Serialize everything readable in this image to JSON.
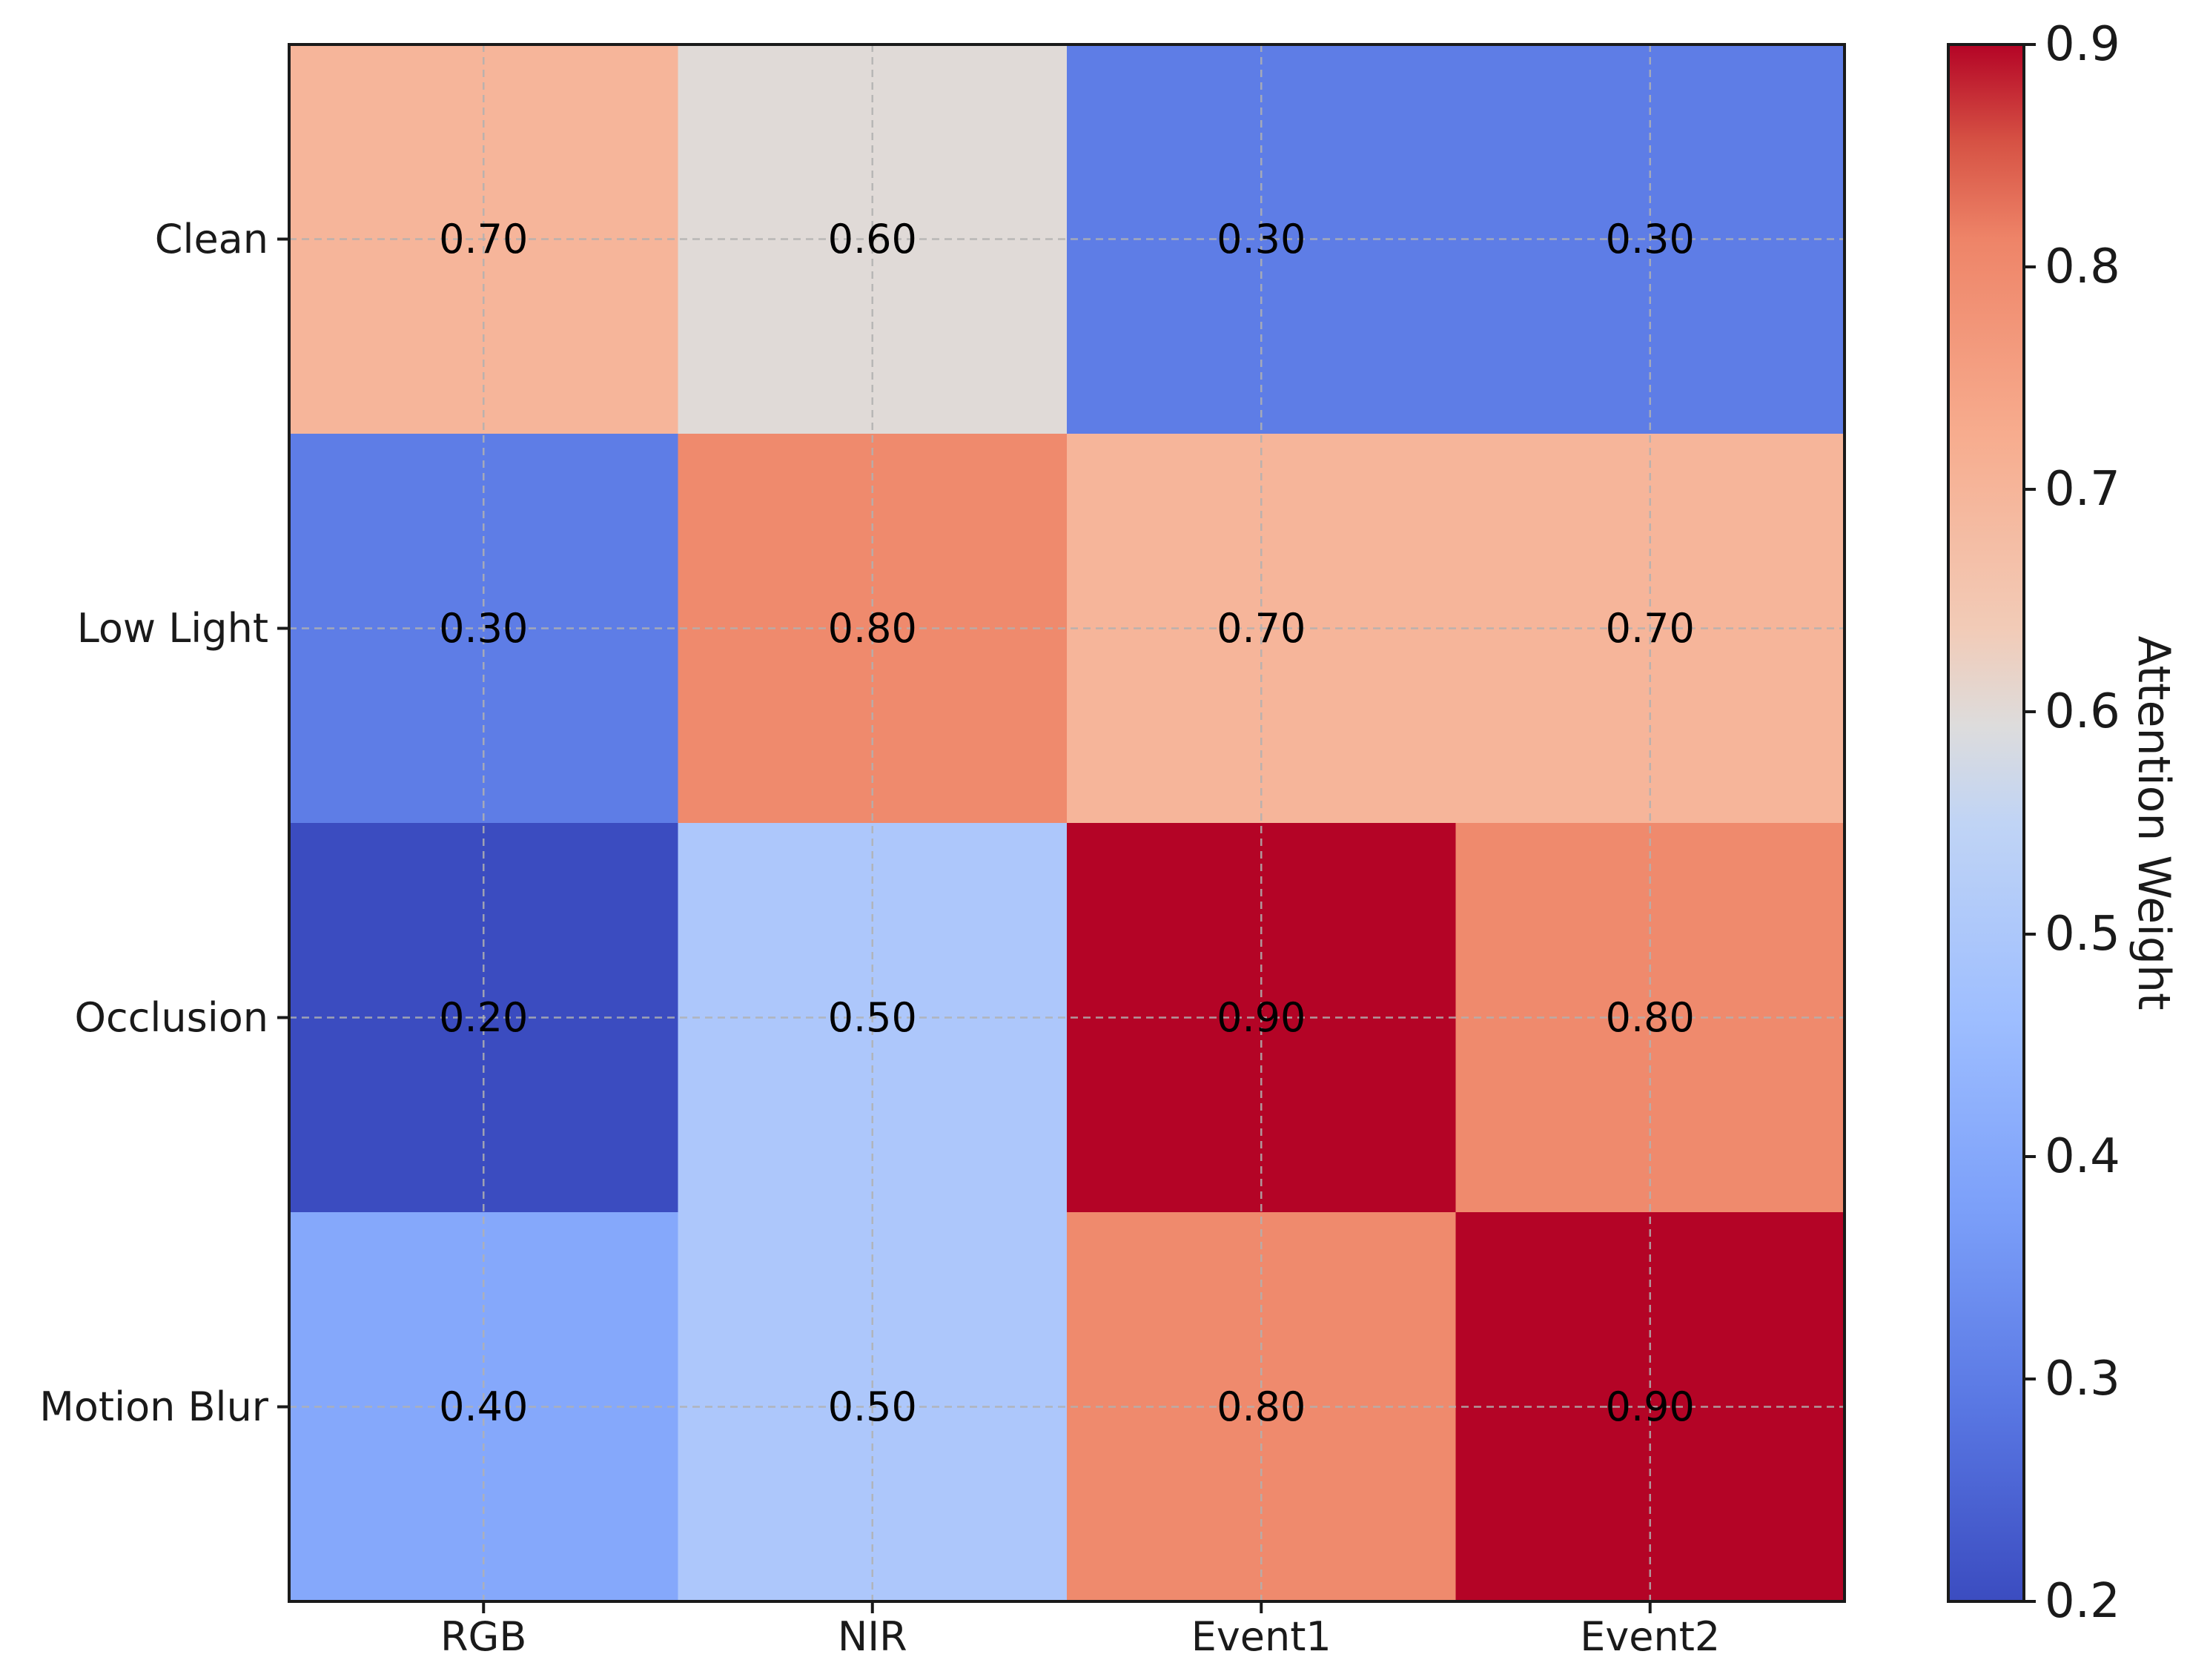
{
  "chart_data": {
    "type": "heatmap",
    "title": "",
    "x_categories": [
      "RGB",
      "NIR",
      "Event1",
      "Event2"
    ],
    "y_categories": [
      "Clean",
      "Low Light",
      "Occlusion",
      "Motion Blur"
    ],
    "values": [
      [
        0.7,
        0.6,
        0.3,
        0.3
      ],
      [
        0.3,
        0.8,
        0.7,
        0.7
      ],
      [
        0.2,
        0.5,
        0.9,
        0.8
      ],
      [
        0.4,
        0.5,
        0.8,
        0.9
      ]
    ],
    "value_labels": [
      [
        "0.70",
        "0.60",
        "0.30",
        "0.30"
      ],
      [
        "0.30",
        "0.80",
        "0.70",
        "0.70"
      ],
      [
        "0.20",
        "0.50",
        "0.90",
        "0.80"
      ],
      [
        "0.40",
        "0.50",
        "0.80",
        "0.90"
      ]
    ],
    "colormap": "coolwarm",
    "vmin": 0.2,
    "vmax": 0.9,
    "grid": true,
    "colorbar": {
      "label": "Attention Weight",
      "ticks": [
        0.2,
        0.3,
        0.4,
        0.5,
        0.6,
        0.7,
        0.8,
        0.9
      ],
      "tick_labels": [
        "0.2",
        "0.3",
        "0.4",
        "0.5",
        "0.6",
        "0.7",
        "0.8",
        "0.9"
      ]
    }
  }
}
